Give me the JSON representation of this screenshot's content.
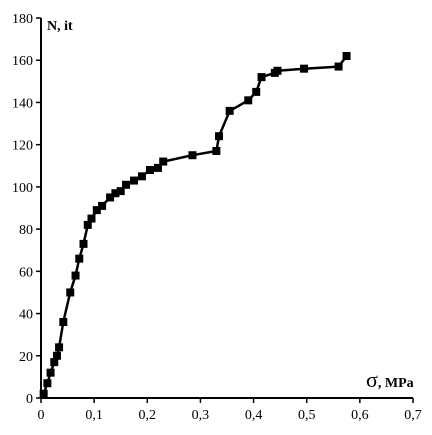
{
  "chart_data": {
    "type": "line",
    "xlabel_symbol": "σ",
    "xlabel_text": ", MPa",
    "ylabel": "N, it",
    "xlim": [
      0,
      0.7
    ],
    "ylim": [
      0,
      180
    ],
    "xticks": [
      {
        "value": 0,
        "label": "0"
      },
      {
        "value": 0.1,
        "label": "0,1"
      },
      {
        "value": 0.2,
        "label": "0,2"
      },
      {
        "value": 0.3,
        "label": "0,3"
      },
      {
        "value": 0.4,
        "label": "0,4"
      },
      {
        "value": 0.5,
        "label": "0,5"
      },
      {
        "value": 0.6,
        "label": "0,6"
      },
      {
        "value": 0.7,
        "label": "0,7"
      }
    ],
    "yticks": [
      {
        "value": 0,
        "label": "0"
      },
      {
        "value": 20,
        "label": "20"
      },
      {
        "value": 40,
        "label": "40"
      },
      {
        "value": 60,
        "label": "60"
      },
      {
        "value": 80,
        "label": "80"
      },
      {
        "value": 100,
        "label": "100"
      },
      {
        "value": 120,
        "label": "120"
      },
      {
        "value": 140,
        "label": "140"
      },
      {
        "value": 160,
        "label": "160"
      },
      {
        "value": 180,
        "label": "180"
      }
    ],
    "grid": false,
    "legend": "none",
    "line_color": "#000000",
    "marker": "square",
    "series": [
      {
        "x": [
          0.005,
          0.012,
          0.018,
          0.025,
          0.03,
          0.034,
          0.042,
          0.055,
          0.065,
          0.072,
          0.08,
          0.088,
          0.095,
          0.105,
          0.115,
          0.13,
          0.14,
          0.15,
          0.16,
          0.175,
          0.19,
          0.205,
          0.22,
          0.23,
          0.285,
          0.33,
          0.335,
          0.355,
          0.39,
          0.405,
          0.415,
          0.44,
          0.445,
          0.495,
          0.56,
          0.575
        ],
        "y": [
          2,
          7,
          12,
          17,
          20,
          24,
          36,
          50,
          58,
          66,
          73,
          82,
          85,
          89,
          91,
          95,
          97,
          98,
          101,
          103,
          105,
          108,
          109,
          112,
          115,
          117,
          124,
          136,
          141,
          145,
          152,
          154,
          155,
          156,
          157,
          162
        ]
      }
    ]
  }
}
